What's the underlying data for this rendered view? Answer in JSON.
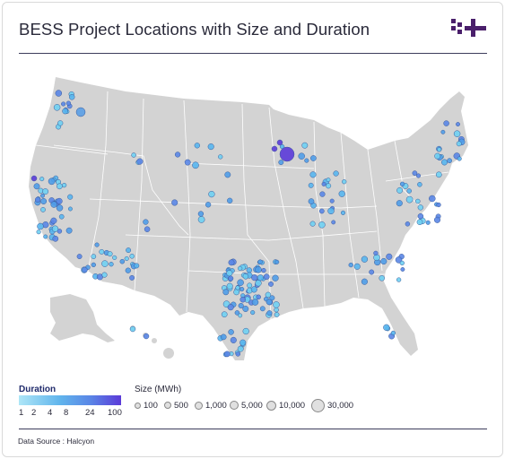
{
  "header": {
    "title": "BESS Project Locations with Size and Duration"
  },
  "colors": {
    "land": "#d3d3d3",
    "border": "#ffffff",
    "accent": "#4a1f6b",
    "duration_low": "#aee6f7",
    "duration_high": "#5b3ad8"
  },
  "legend": {
    "duration_title": "Duration",
    "duration_ticks": [
      "1",
      "2",
      "4",
      "8",
      "24",
      "100"
    ],
    "size_title": "Size (MWh)",
    "size_items": [
      "100",
      "500",
      "1,000",
      "5,000",
      "10,000",
      "30,000"
    ]
  },
  "footer": {
    "source": "Data Source : Halcyon"
  },
  "map": {
    "region": "United States",
    "icon": "logo-icon"
  }
}
